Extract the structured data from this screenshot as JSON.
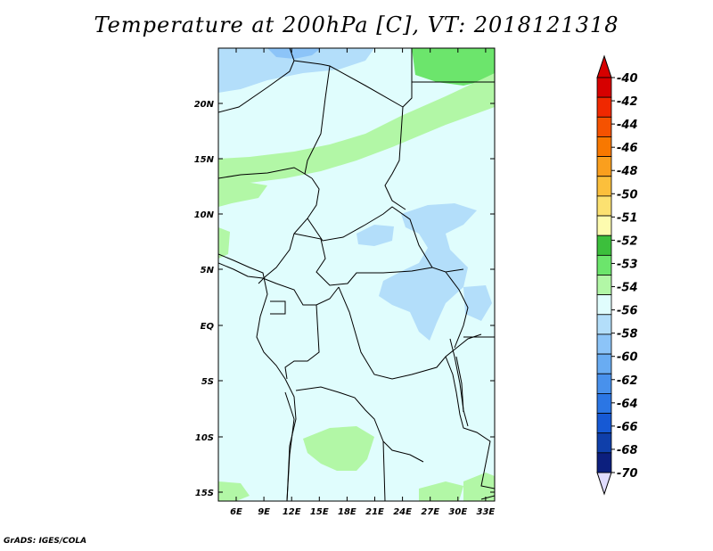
{
  "title": "Temperature at 200hPa [C], VT: 2018121318",
  "credit": "GrADS: IGES/COLA",
  "map": {
    "lat_labels": [
      "20N",
      "15N",
      "10N",
      "5N",
      "EQ",
      "5S",
      "10S",
      "15S"
    ],
    "lon_labels": [
      "6E",
      "9E",
      "12E",
      "15E",
      "18E",
      "21E",
      "24E",
      "27E",
      "30E",
      "33E"
    ]
  },
  "colorbar": {
    "levels": [
      "-40",
      "-42",
      "-44",
      "-46",
      "-48",
      "-50",
      "-51",
      "-52",
      "-53",
      "-54",
      "-56",
      "-58",
      "-60",
      "-62",
      "-64",
      "-66",
      "-68",
      "-70"
    ],
    "colors": [
      "#d60000",
      "#f02800",
      "#f55200",
      "#f87800",
      "#fa9f1e",
      "#fbbf3c",
      "#fce171",
      "#fdfbaf",
      "#3cbf3c",
      "#6ce56c",
      "#b2f7a6",
      "#e0fdfd",
      "#b3defa",
      "#8cc4f8",
      "#69acf2",
      "#4891ec",
      "#2b76e4",
      "#1659d4",
      "#0f3faa",
      "#0c1f7e"
    ],
    "top_color": "#d60000",
    "bottom_color": "#e0dcfd"
  },
  "field_colors": {
    "background": "#e0fdfd",
    "light_green": "#b2f7a6",
    "green": "#6ce56c",
    "light_blue": "#b3defa",
    "blue": "#8cc4f8"
  }
}
